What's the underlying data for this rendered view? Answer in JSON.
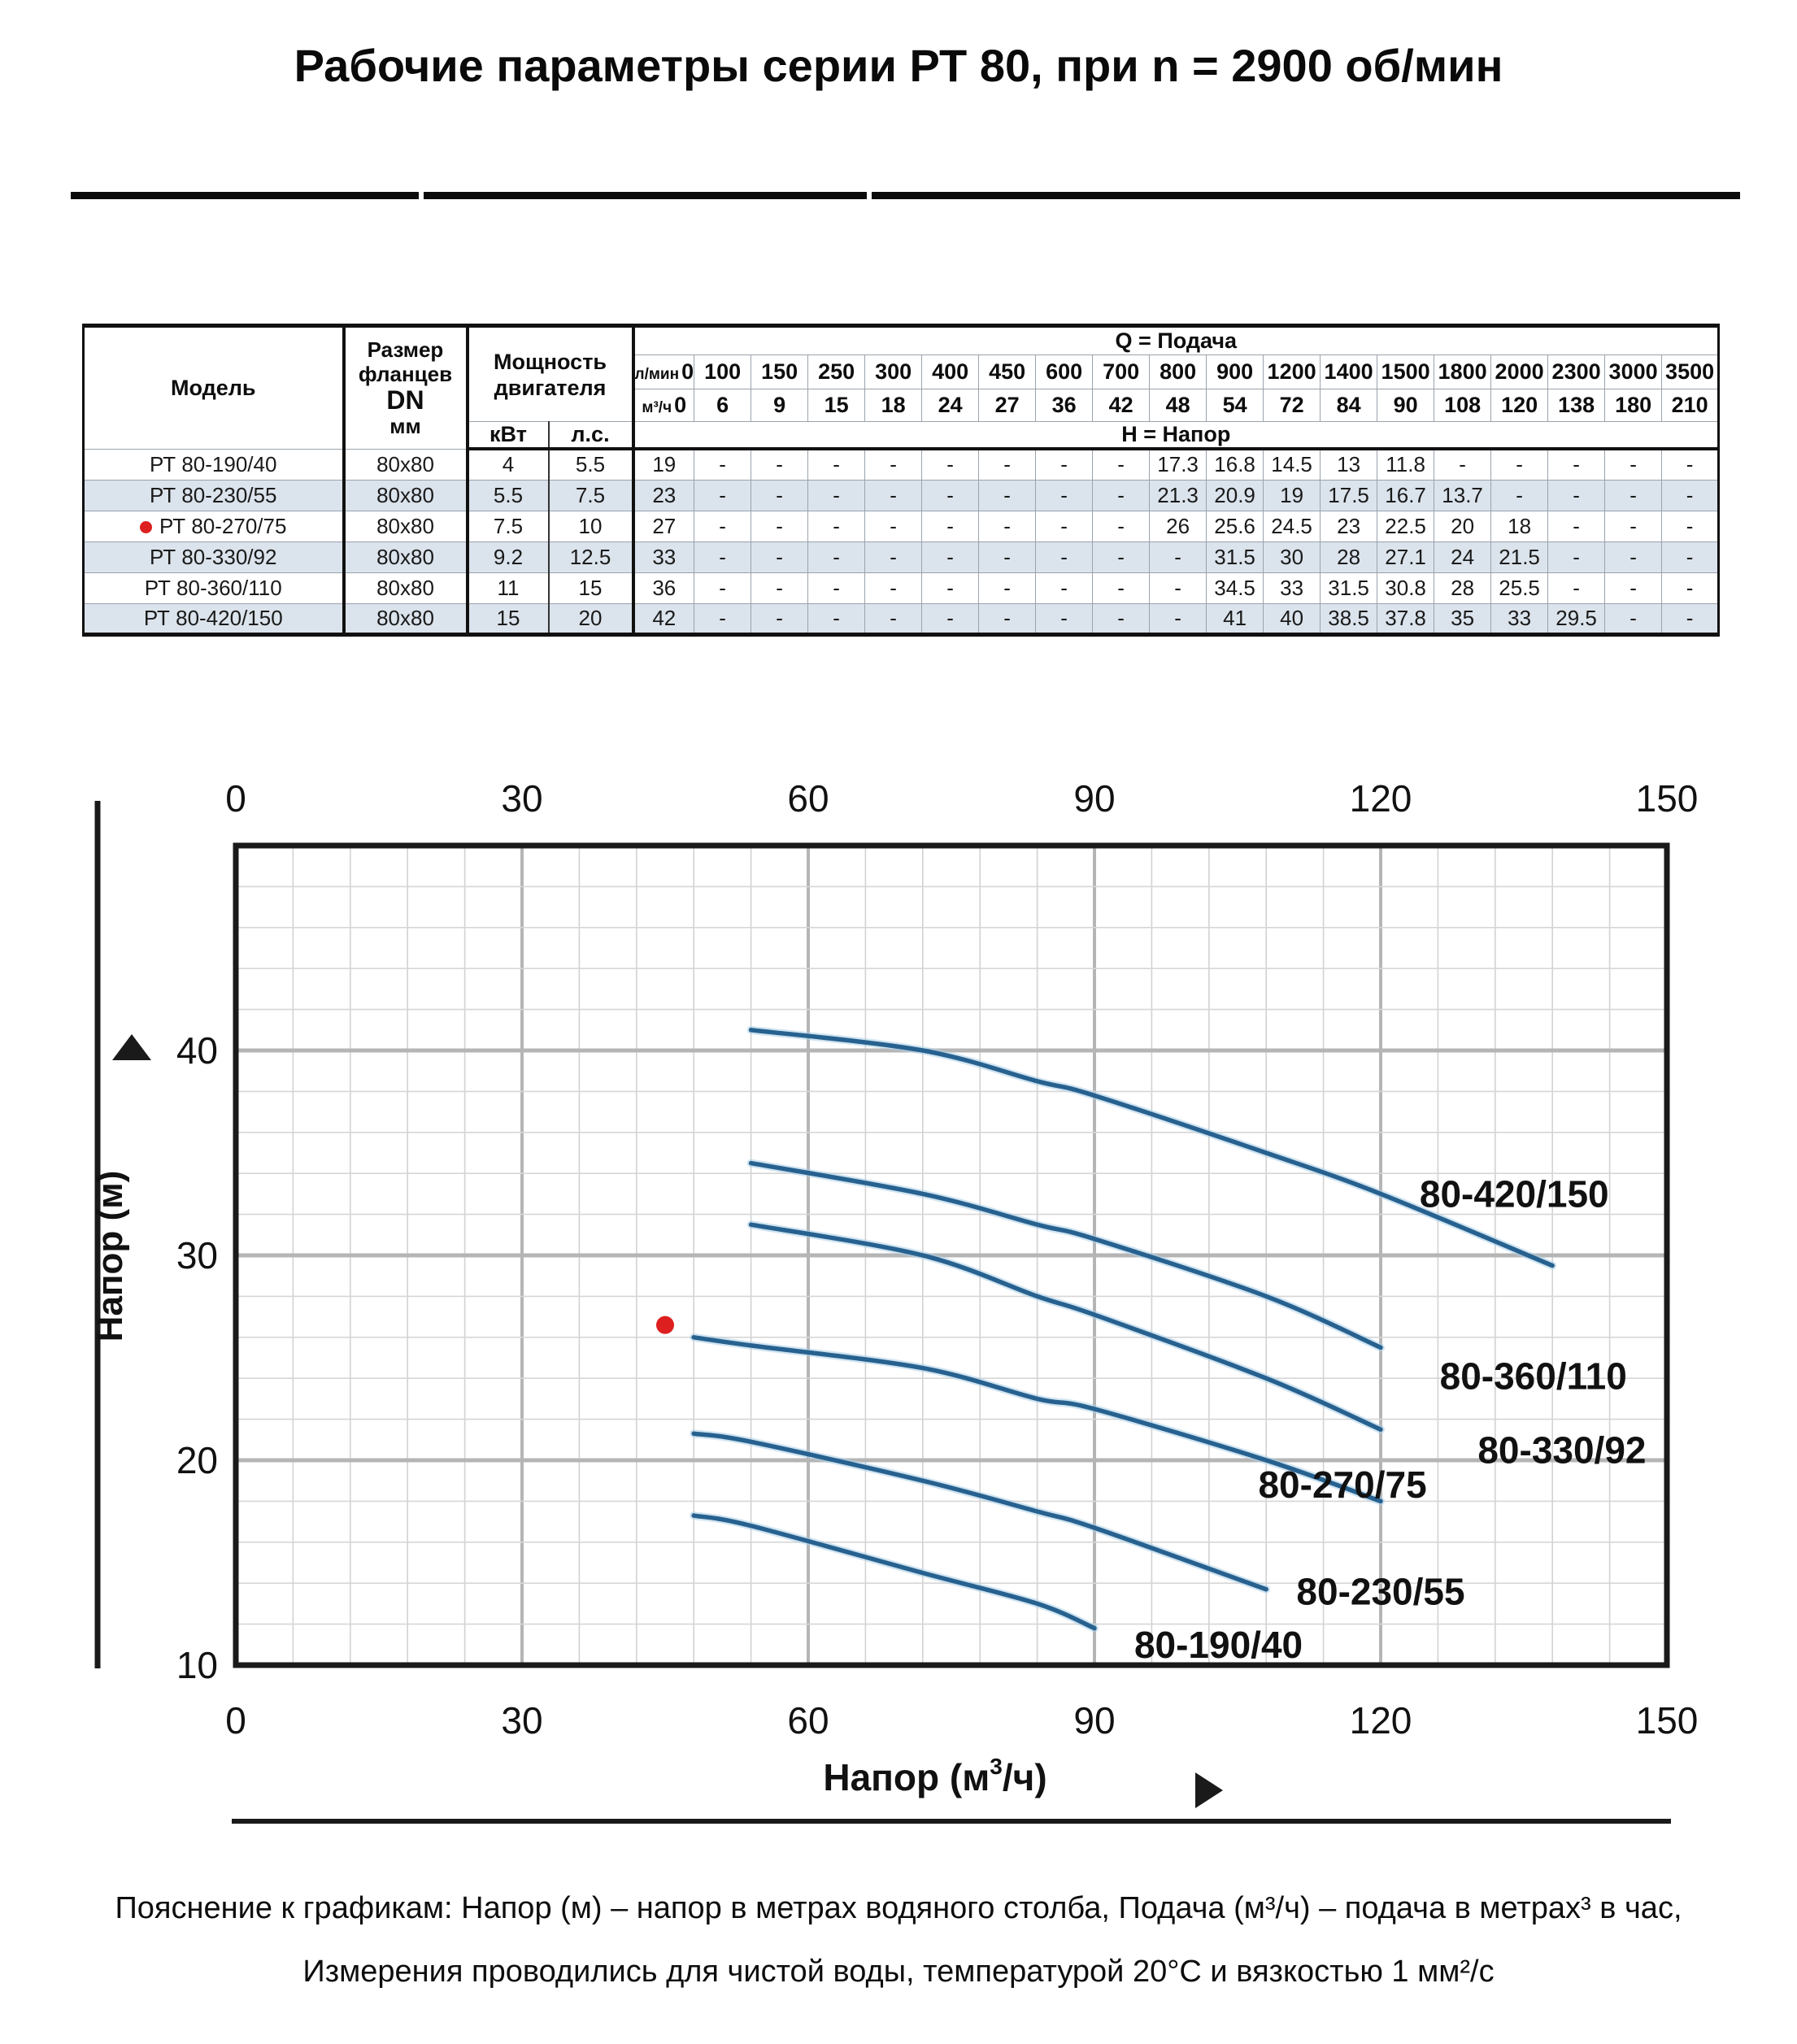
{
  "title": "Рабочие параметры серии РТ 80, при n = 2900 об/мин",
  "table": {
    "headers": {
      "model": "Модель",
      "flange_lines": [
        "Размер",
        "фланцев",
        "DN",
        "мм"
      ],
      "power_lines": [
        "Мощность",
        "двигателя"
      ],
      "power_units": [
        "кВт",
        "л.с."
      ],
      "q_title": "Q = Подача",
      "h_title": "Н = Напор",
      "unit_lmin": "л/мин",
      "unit_m3h": "м³/ч",
      "lmin_values": [
        "0",
        "100",
        "150",
        "250",
        "300",
        "400",
        "450",
        "600",
        "700",
        "800",
        "900",
        "1200",
        "1400",
        "1500",
        "1800",
        "2000",
        "2300",
        "3000",
        "3500"
      ],
      "m3h_values": [
        "0",
        "6",
        "9",
        "15",
        "18",
        "24",
        "27",
        "36",
        "42",
        "48",
        "54",
        "72",
        "84",
        "90",
        "108",
        "120",
        "138",
        "180",
        "210"
      ]
    },
    "rows": [
      {
        "model": "РТ 80-190/40",
        "marked": false,
        "flange": "80х80",
        "kw": "4",
        "hp": "5.5",
        "values": [
          "19",
          "-",
          "-",
          "-",
          "-",
          "-",
          "-",
          "-",
          "-",
          "17.3",
          "16.8",
          "14.5",
          "13",
          "11.8",
          "-",
          "-",
          "-",
          "-",
          "-"
        ]
      },
      {
        "model": "РТ 80-230/55",
        "marked": false,
        "flange": "80х80",
        "kw": "5.5",
        "hp": "7.5",
        "values": [
          "23",
          "-",
          "-",
          "-",
          "-",
          "-",
          "-",
          "-",
          "-",
          "21.3",
          "20.9",
          "19",
          "17.5",
          "16.7",
          "13.7",
          "-",
          "-",
          "-",
          "-"
        ]
      },
      {
        "model": "РТ 80-270/75",
        "marked": true,
        "flange": "80х80",
        "kw": "7.5",
        "hp": "10",
        "values": [
          "27",
          "-",
          "-",
          "-",
          "-",
          "-",
          "-",
          "-",
          "-",
          "26",
          "25.6",
          "24.5",
          "23",
          "22.5",
          "20",
          "18",
          "-",
          "-",
          "-"
        ]
      },
      {
        "model": "РТ 80-330/92",
        "marked": false,
        "flange": "80х80",
        "kw": "9.2",
        "hp": "12.5",
        "values": [
          "33",
          "-",
          "-",
          "-",
          "-",
          "-",
          "-",
          "-",
          "-",
          "-",
          "31.5",
          "30",
          "28",
          "27.1",
          "24",
          "21.5",
          "-",
          "-",
          "-"
        ]
      },
      {
        "model": "РТ 80-360/110",
        "marked": false,
        "flange": "80х80",
        "kw": "11",
        "hp": "15",
        "values": [
          "36",
          "-",
          "-",
          "-",
          "-",
          "-",
          "-",
          "-",
          "-",
          "-",
          "34.5",
          "33",
          "31.5",
          "30.8",
          "28",
          "25.5",
          "-",
          "-",
          "-"
        ]
      },
      {
        "model": "РТ 80-420/150",
        "marked": false,
        "flange": "80х80",
        "kw": "15",
        "hp": "20",
        "values": [
          "42",
          "-",
          "-",
          "-",
          "-",
          "-",
          "-",
          "-",
          "-",
          "-",
          "41",
          "40",
          "38.5",
          "37.8",
          "35",
          "33",
          "29.5",
          "-",
          "-"
        ]
      }
    ]
  },
  "chart_data": {
    "type": "line",
    "title": "",
    "xlabel_parts": {
      "pre": "Напор (м",
      "sup": "3",
      "post": "/ч)"
    },
    "ylabel": "Напор (м)",
    "xlim": [
      0,
      150
    ],
    "ylim": [
      10,
      50
    ],
    "x_ticks": [
      0,
      30,
      60,
      90,
      120,
      150
    ],
    "y_ticks": [
      10,
      20,
      30,
      40
    ],
    "x_minor_step": 6,
    "x_major_step": 30,
    "y_minor_step": 2,
    "y_major_step": 10,
    "grid": true,
    "line_color": "#27618f",
    "halo_color": "#a9cde6",
    "duty_point": {
      "x": 45,
      "y": 26.6,
      "color": "#dd1f1f"
    },
    "series": [
      {
        "name": "80-190/40",
        "points": [
          [
            48,
            17.3
          ],
          [
            54,
            16.8
          ],
          [
            72,
            14.5
          ],
          [
            84,
            13
          ],
          [
            90,
            11.8
          ]
        ],
        "label_pos": [
          103,
          11.0
        ]
      },
      {
        "name": "80-230/55",
        "points": [
          [
            48,
            21.3
          ],
          [
            54,
            20.9
          ],
          [
            72,
            19
          ],
          [
            84,
            17.5
          ],
          [
            90,
            16.7
          ],
          [
            108,
            13.7
          ]
        ],
        "label_pos": [
          120,
          13.6
        ]
      },
      {
        "name": "80-270/75",
        "points": [
          [
            48,
            26
          ],
          [
            54,
            25.6
          ],
          [
            72,
            24.5
          ],
          [
            84,
            23
          ],
          [
            90,
            22.5
          ],
          [
            108,
            20
          ],
          [
            120,
            18
          ]
        ],
        "label_pos": [
          116,
          18.8
        ]
      },
      {
        "name": "80-330/92",
        "points": [
          [
            54,
            31.5
          ],
          [
            72,
            30
          ],
          [
            84,
            28
          ],
          [
            90,
            27.1
          ],
          [
            108,
            24
          ],
          [
            120,
            21.5
          ]
        ],
        "label_pos": [
          139,
          20.5
        ]
      },
      {
        "name": "80-360/110",
        "points": [
          [
            54,
            34.5
          ],
          [
            72,
            33
          ],
          [
            84,
            31.5
          ],
          [
            90,
            30.8
          ],
          [
            108,
            28
          ],
          [
            120,
            25.5
          ]
        ],
        "label_pos": [
          136,
          24.1
        ]
      },
      {
        "name": "80-420/150",
        "points": [
          [
            54,
            41
          ],
          [
            72,
            40
          ],
          [
            84,
            38.5
          ],
          [
            90,
            37.8
          ],
          [
            108,
            35
          ],
          [
            120,
            33
          ],
          [
            138,
            29.5
          ]
        ],
        "label_pos": [
          134,
          33
        ]
      }
    ]
  },
  "footnotes": {
    "line1": "Пояснение к графикам: Напор (м) – напор в метрах водяного столба, Подача (м³/ч) – подача в метрах³ в час,",
    "line2": "Измерения проводились для чистой воды, температурой 20°C и вязкостью 1 мм²/с"
  }
}
